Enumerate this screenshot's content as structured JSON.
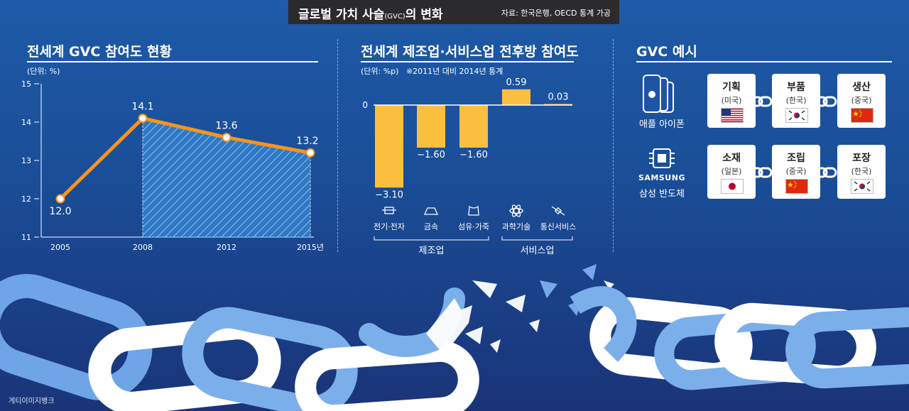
{
  "header": {
    "title": "글로벌 가치 사슬",
    "title_abbr": "(GVC)",
    "title_tail": "의 변화",
    "source": "자료: 한국은행, OECD 통계 가공"
  },
  "left": {
    "title": "전세계 GVC 참여도 현황",
    "unit": "(단위: %)"
  },
  "middle": {
    "title": "전세계 제조업·서비스업 전후방 참여도",
    "unit": "(단위: %p)",
    "note": "※2011년 대비 2014년 통계"
  },
  "right": {
    "title": "GVC 예시"
  },
  "chart_data": [
    {
      "type": "line",
      "x": [
        "2005",
        "2008",
        "2012",
        "2015년"
      ],
      "y": [
        12.0,
        14.1,
        13.6,
        13.2
      ],
      "data_labels": [
        "12.0",
        "14.1",
        "13.6",
        "13.2"
      ],
      "yticks": [
        "15",
        "14",
        "13",
        "12",
        "11"
      ],
      "ylim": [
        11,
        15
      ],
      "shaded_range": [
        "2008",
        "2015년"
      ],
      "colors": {
        "line": "#f7941d",
        "shade": "#3f8ed6"
      }
    },
    {
      "type": "bar",
      "categories": [
        "전기·전자",
        "금속",
        "섬유·가죽",
        "과학기술",
        "통신서비스"
      ],
      "values": [
        -3.1,
        -1.6,
        -1.6,
        0.59,
        0.03
      ],
      "data_labels": [
        "−3.10",
        "−1.60",
        "−1.60",
        "0.59",
        "0.03"
      ],
      "zero_label": "0",
      "groups": [
        {
          "label": "제조업",
          "categories": [
            "전기·전자",
            "금속",
            "섬유·가죽"
          ]
        },
        {
          "label": "서비스업",
          "categories": [
            "과학기술",
            "통신서비스"
          ]
        }
      ],
      "ylim": [
        -3.5,
        1
      ],
      "colors": {
        "bar": "#fbbf3f"
      },
      "icons": [
        "circuit-icon",
        "metal-ingot-icon",
        "cloth-icon",
        "atom-icon",
        "satellite-icon"
      ]
    }
  ],
  "gvc": {
    "apple": {
      "label": "애플 아이폰",
      "steps": [
        {
          "name": "기획",
          "country": "(미국)",
          "flag": "us"
        },
        {
          "name": "부품",
          "country": "(한국)",
          "flag": "kr"
        },
        {
          "name": "생산",
          "country": "(중국)",
          "flag": "cn"
        }
      ]
    },
    "samsung": {
      "logo": "SAMSUNG",
      "label": "삼성 반도체",
      "steps": [
        {
          "name": "소재",
          "country": "(일본)",
          "flag": "jp"
        },
        {
          "name": "조립",
          "country": "(중국)",
          "flag": "cn"
        },
        {
          "name": "포장",
          "country": "(한국)",
          "flag": "kr"
        }
      ]
    }
  },
  "credit": "게티이미지뱅크"
}
